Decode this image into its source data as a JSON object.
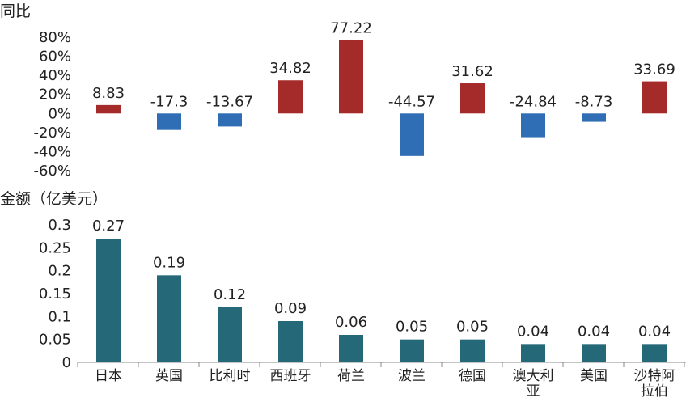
{
  "colors": {
    "positive": "#A52A2A",
    "negative": "#2F6DB5",
    "amount": "#256877",
    "axis": "#888888",
    "text": "#222222"
  },
  "chart_data": [
    {
      "type": "bar",
      "ylabel": "同比",
      "categories": [
        "日本",
        "英国",
        "比利时",
        "西班牙",
        "荷兰",
        "波兰",
        "德国",
        "澳大利亚",
        "美国",
        "沙特阿拉伯"
      ],
      "values": [
        8.83,
        -17.3,
        -13.67,
        34.82,
        77.22,
        -44.57,
        31.62,
        -24.84,
        -8.73,
        33.69
      ],
      "value_labels": [
        "8.83",
        "-17.3",
        "-13.67",
        "34.82",
        "77.22",
        "-44.57",
        "31.62",
        "-24.84",
        "-8.73",
        "33.69"
      ],
      "ylim": [
        -60,
        80
      ],
      "yticks": [
        80,
        60,
        40,
        20,
        0,
        -20,
        -40,
        -60
      ],
      "ytick_labels": [
        "80%",
        "60%",
        "40%",
        "20%",
        "0%",
        "-20%",
        "-40%",
        "-60%"
      ]
    },
    {
      "type": "bar",
      "ylabel": "金额（亿美元）",
      "categories": [
        "日本",
        "英国",
        "比利时",
        "西班牙",
        "荷兰",
        "波兰",
        "德国",
        "澳大利亚",
        "美国",
        "沙特阿拉伯"
      ],
      "category_labels": [
        [
          "日本"
        ],
        [
          "英国"
        ],
        [
          "比利时"
        ],
        [
          "西班牙"
        ],
        [
          "荷兰"
        ],
        [
          "波兰"
        ],
        [
          "德国"
        ],
        [
          "澳大利",
          "亚"
        ],
        [
          "美国"
        ],
        [
          "沙特阿",
          "拉伯"
        ]
      ],
      "values": [
        0.27,
        0.19,
        0.12,
        0.09,
        0.06,
        0.05,
        0.05,
        0.04,
        0.04,
        0.04
      ],
      "value_labels": [
        "0.27",
        "0.19",
        "0.12",
        "0.09",
        "0.06",
        "0.05",
        "0.05",
        "0.04",
        "0.04",
        "0.04"
      ],
      "ylim": [
        0,
        0.3
      ],
      "yticks": [
        0.3,
        0.25,
        0.2,
        0.15,
        0.1,
        0.05,
        0
      ],
      "ytick_labels": [
        "0.3",
        "0.25",
        "0.2",
        "0.15",
        "0.1",
        "0.05",
        "0"
      ]
    }
  ]
}
